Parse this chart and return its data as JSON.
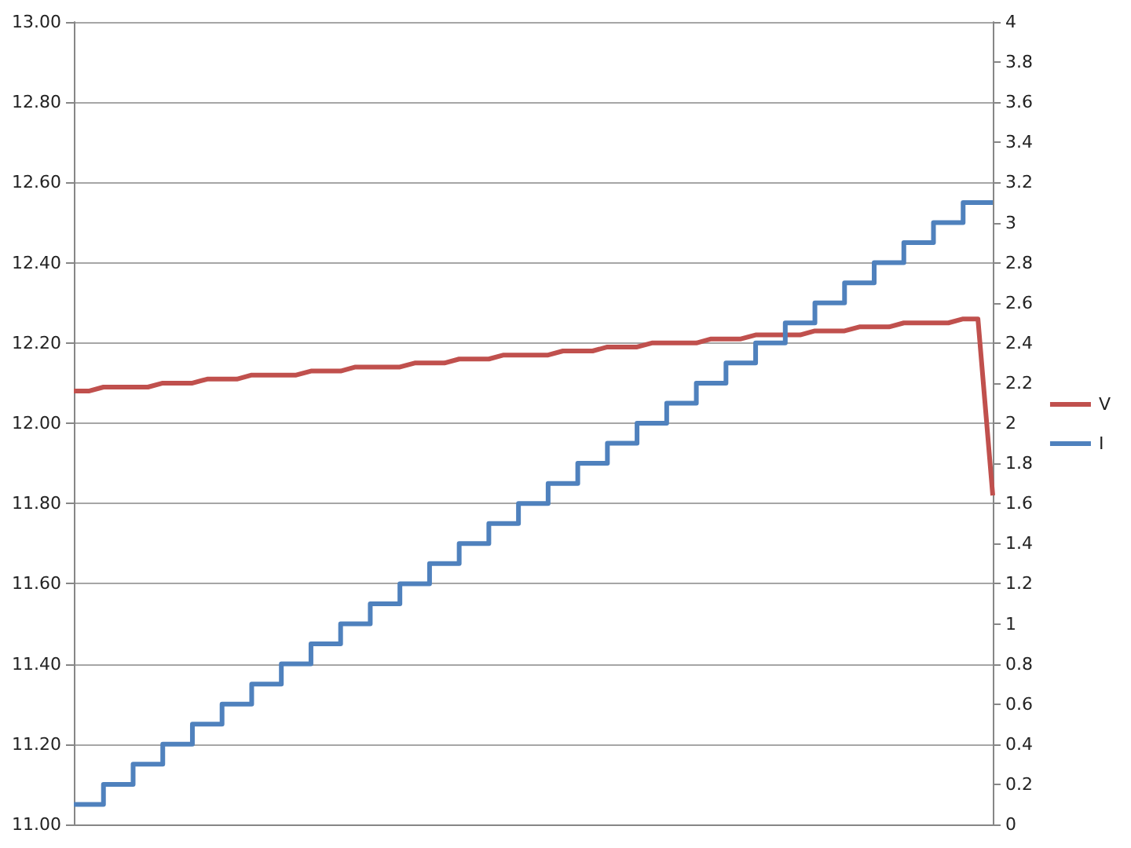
{
  "chart_data": {
    "type": "line",
    "categories": [
      null,
      null,
      null,
      null,
      null,
      null,
      null,
      null,
      null,
      null,
      null,
      null,
      null,
      null,
      null,
      null,
      null,
      null,
      null,
      null,
      null,
      null,
      null,
      null,
      null,
      null,
      null,
      null,
      null,
      null,
      null,
      null,
      null,
      null,
      null,
      null,
      null,
      null,
      null,
      null,
      null,
      null,
      null,
      null,
      null,
      null,
      null,
      null,
      null,
      null,
      null,
      null,
      null,
      null,
      null,
      null,
      null,
      null,
      null,
      null,
      null,
      null,
      null
    ],
    "series": [
      {
        "name": "V",
        "color": "#c0504d",
        "values": [
          12.08,
          12.08,
          12.09,
          12.09,
          12.09,
          12.09,
          12.1,
          12.1,
          12.1,
          12.11,
          12.11,
          12.11,
          12.12,
          12.12,
          12.12,
          12.12,
          12.13,
          12.13,
          12.13,
          12.14,
          12.14,
          12.14,
          12.14,
          12.15,
          12.15,
          12.15,
          12.16,
          12.16,
          12.16,
          12.17,
          12.17,
          12.17,
          12.17,
          12.18,
          12.18,
          12.18,
          12.19,
          12.19,
          12.19,
          12.2,
          12.2,
          12.2,
          12.2,
          12.21,
          12.21,
          12.21,
          12.22,
          12.22,
          12.22,
          12.22,
          12.23,
          12.23,
          12.23,
          12.24,
          12.24,
          12.24,
          12.25,
          12.25,
          12.25,
          12.25,
          12.26,
          12.26,
          11.82
        ]
      },
      {
        "name": "I",
        "color": "#4f81bd",
        "type": "step",
        "axis": "y2",
        "values": [
          0.1,
          0.1,
          0.2,
          0.2,
          0.3,
          0.3,
          0.4,
          0.4,
          0.5,
          0.5,
          0.6,
          0.6,
          0.7,
          0.7,
          0.8,
          0.8,
          0.9,
          0.9,
          1.0,
          1.0,
          1.1,
          1.1,
          1.2,
          1.2,
          1.3,
          1.3,
          1.4,
          1.4,
          1.5,
          1.5,
          1.6,
          1.6,
          1.7,
          1.7,
          1.8,
          1.8,
          1.9,
          1.9,
          2.0,
          2.0,
          2.1,
          2.1,
          2.2,
          2.2,
          2.3,
          2.3,
          2.4,
          2.4,
          2.5,
          2.5,
          2.6,
          2.6,
          2.7,
          2.7,
          2.8,
          2.8,
          2.9,
          2.9,
          3.0,
          3.0,
          3.1,
          3.1,
          3.1
        ]
      }
    ],
    "ylim": [
      11,
      13
    ],
    "yticks": [
      {
        "value": 11,
        "label": "11.00"
      },
      {
        "value": 11.2,
        "label": "11.20"
      },
      {
        "value": 11.4,
        "label": "11.40"
      },
      {
        "value": 11.6,
        "label": "11.60"
      },
      {
        "value": 11.8,
        "label": "11.80"
      },
      {
        "value": 12,
        "label": "12.00"
      },
      {
        "value": 12.2,
        "label": "12.20"
      },
      {
        "value": 12.4,
        "label": "12.40"
      },
      {
        "value": 12.6,
        "label": "12.60"
      },
      {
        "value": 12.8,
        "label": "12.80"
      },
      {
        "value": 13,
        "label": "13.00"
      }
    ],
    "y2lim": [
      0,
      4
    ],
    "y2ticks": [
      0,
      0.2,
      0.4,
      0.6,
      0.8,
      1,
      1.2,
      1.4,
      1.6,
      1.8,
      2,
      2.2,
      2.4,
      2.6,
      2.8,
      3,
      3.2,
      3.4,
      3.6,
      3.8,
      4
    ],
    "grid": "y",
    "legend": "right",
    "marker": "none"
  }
}
